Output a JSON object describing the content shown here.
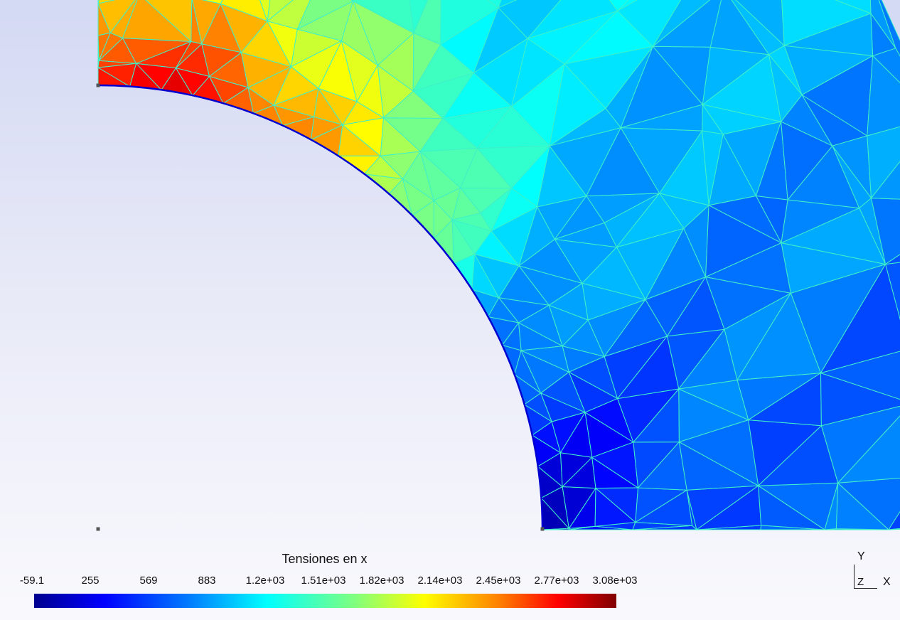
{
  "colorbar": {
    "title": "Tensiones en x",
    "ticks": [
      "-59.1",
      "255",
      "569",
      "883",
      "1.2e+03",
      "1.51e+03",
      "1.82e+03",
      "2.14e+03",
      "2.45e+03",
      "2.77e+03",
      "3.08e+03"
    ],
    "gradient_colors": [
      "#00008f",
      "#0000ff",
      "#007fff",
      "#00ffff",
      "#7fff7f",
      "#ffff00",
      "#ff7f00",
      "#ff0000",
      "#800000"
    ]
  },
  "axes": {
    "y_label": "Y",
    "z_label": "Z",
    "x_label": "X"
  },
  "colors": {
    "mesh_edge": "#3ff0c8",
    "hole_edge": "#0000d0",
    "background_top": "#d4d9f4",
    "background_bottom": "#f9f9fd"
  }
}
